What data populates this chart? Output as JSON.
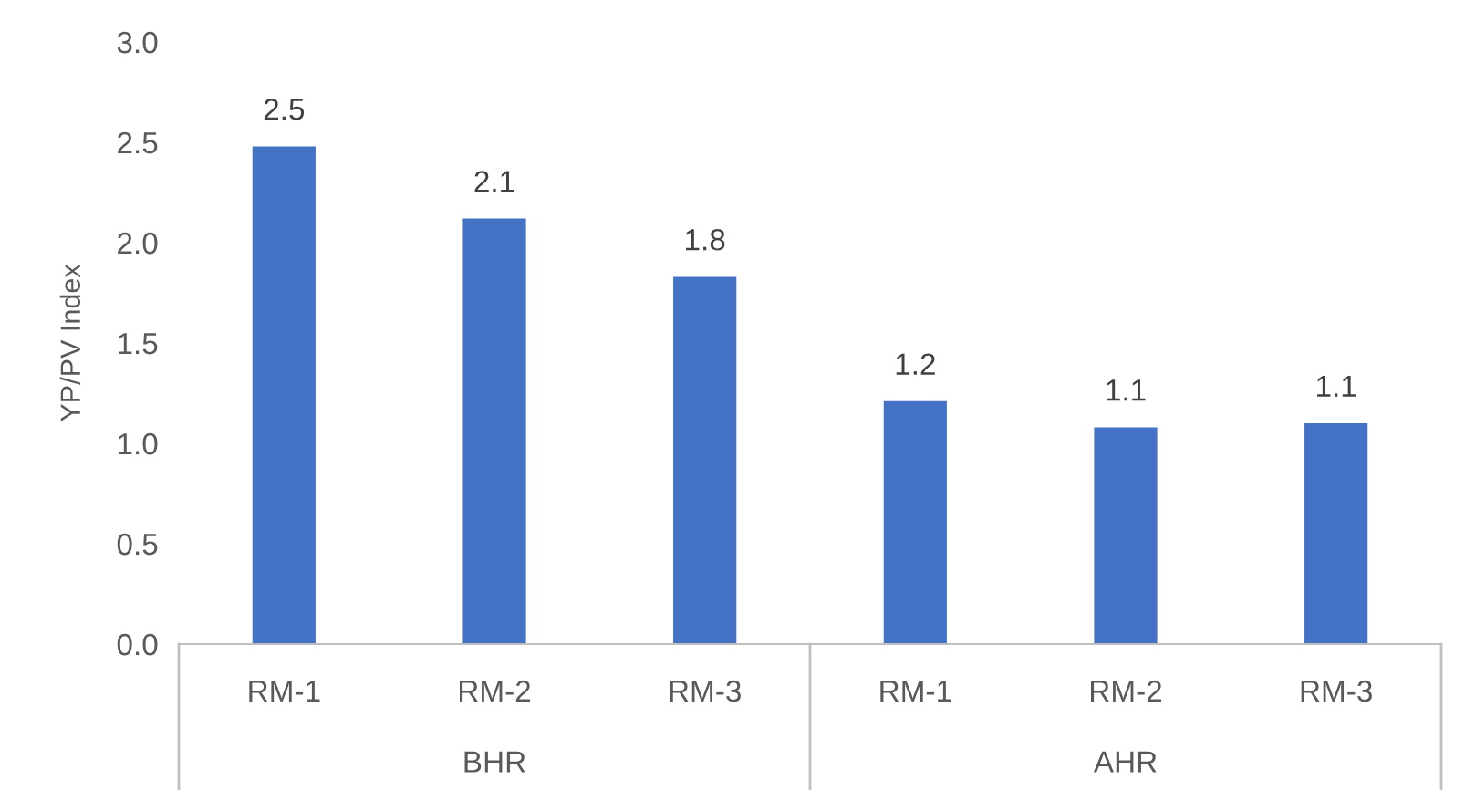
{
  "chart_data": {
    "type": "bar",
    "ylabel": "YP/PV Index",
    "categories": [
      "RM-1",
      "RM-2",
      "RM-3",
      "RM-1",
      "RM-2",
      "RM-3"
    ],
    "values": [
      2.48,
      2.12,
      1.83,
      1.21,
      1.08,
      1.1
    ],
    "value_labels": [
      "2.5",
      "2.1",
      "1.8",
      "1.2",
      "1.1",
      "1.1"
    ],
    "color": "#4472c4",
    "ylim": [
      0,
      3
    ],
    "yticks": [
      {
        "value": 0,
        "label": "0.0"
      },
      {
        "value": 0.5,
        "label": "0.5"
      },
      {
        "value": 1,
        "label": "1.0"
      },
      {
        "value": 1.5,
        "label": "1.5"
      },
      {
        "value": 2,
        "label": "2.0"
      },
      {
        "value": 2.5,
        "label": "2.5"
      },
      {
        "value": 3,
        "label": "3.0"
      }
    ],
    "annotations": [
      "BHR",
      "AHR"
    ],
    "grid": false,
    "legend": false
  }
}
